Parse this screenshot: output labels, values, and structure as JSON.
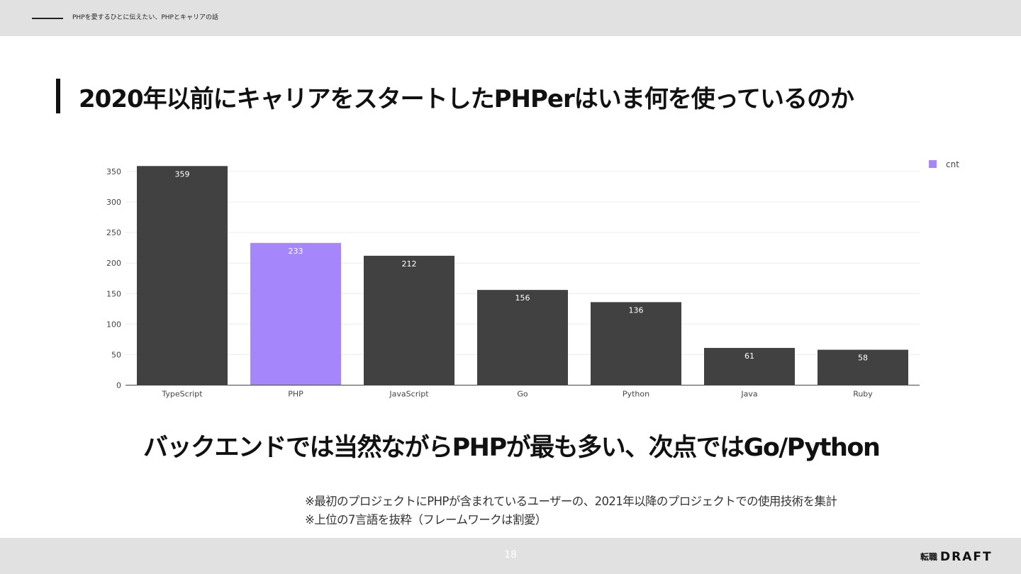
{
  "header": {
    "text": "PHPを愛するひとに伝えたい、PHPとキャリアの話"
  },
  "slide": {
    "title": "2020年以前にキャリアをスタートしたPHPerはいま何を使っているのか",
    "headline": "バックエンドでは当然ながらPHPが最も多い、次点ではGo/Python",
    "note1": "※最初のプロジェクトにPHPが含まれているユーザーの、2021年以降のプロジェクトでの使用技術を集計",
    "note2": "※上位の7言語を抜粋（フレームワークは割愛）"
  },
  "footer": {
    "page_number": "18",
    "logo_small": "転職",
    "logo_big": "DRAFT"
  },
  "colors": {
    "bar_default": "#414141",
    "bar_highlight": "#a687fb",
    "grid": "#ececec",
    "axis": "#444444"
  },
  "chart_data": {
    "type": "bar",
    "categories": [
      "TypeScript",
      "PHP",
      "JavaScript",
      "Go",
      "Python",
      "Java",
      "Ruby"
    ],
    "series": [
      {
        "name": "cnt",
        "values": [
          359,
          233,
          212,
          156,
          136,
          61,
          58
        ]
      }
    ],
    "highlight_category": "PHP",
    "yticks": [
      0,
      50,
      100,
      150,
      200,
      250,
      300,
      350
    ],
    "ylim": [
      0,
      360
    ],
    "xlabel": "",
    "ylabel": "",
    "grid": true,
    "legend": {
      "position": "top-right",
      "entries": [
        "cnt"
      ]
    }
  }
}
